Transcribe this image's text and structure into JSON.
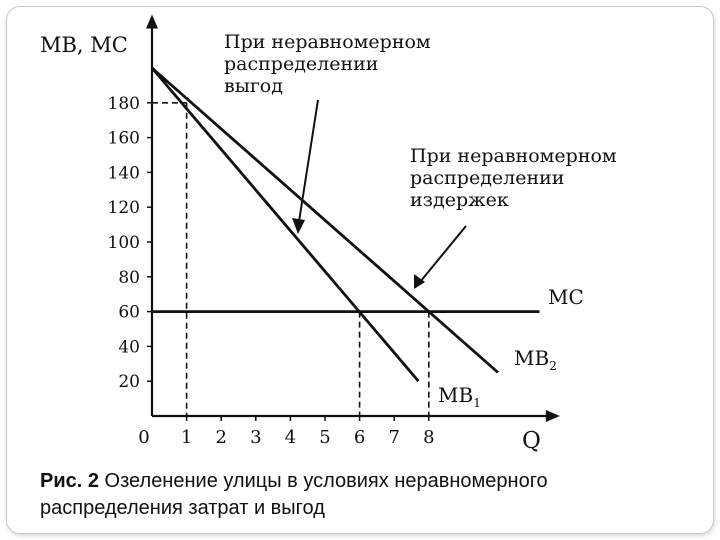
{
  "chart_data": {
    "type": "line",
    "ylabel": "MB, MC",
    "xlabel": "Q",
    "x_ticks": [
      0,
      1,
      2,
      3,
      4,
      5,
      6,
      7,
      8
    ],
    "y_ticks": [
      20,
      40,
      60,
      80,
      100,
      120,
      140,
      160,
      180
    ],
    "xlim": [
      0,
      11.5
    ],
    "ylim": [
      0,
      225
    ],
    "series": [
      {
        "name": "MC",
        "label_main": "MC",
        "label_sub": "",
        "points": [
          [
            0,
            60
          ],
          [
            11.2,
            60
          ]
        ]
      },
      {
        "name": "MB2",
        "label_main": "MB",
        "label_sub": "2",
        "points": [
          [
            0,
            200
          ],
          [
            10,
            25
          ]
        ]
      },
      {
        "name": "MB1",
        "label_main": "MB",
        "label_sub": "1",
        "points": [
          [
            0,
            200
          ],
          [
            7.7,
            20
          ]
        ]
      }
    ],
    "guides": [
      {
        "x": 1,
        "y": 180
      },
      {
        "x": 6,
        "y": 60
      },
      {
        "x": 8,
        "y": 60
      }
    ],
    "annotations": [
      {
        "lines": [
          "При неравномерном",
          "распределении",
          "выгод"
        ]
      },
      {
        "lines": [
          "При неравномерном",
          "распределении",
          "издержек"
        ]
      }
    ]
  },
  "caption": {
    "label": "Рис. 2",
    "text": " Озеленение улицы в условиях неравномерного распределения затрат и выгод"
  }
}
